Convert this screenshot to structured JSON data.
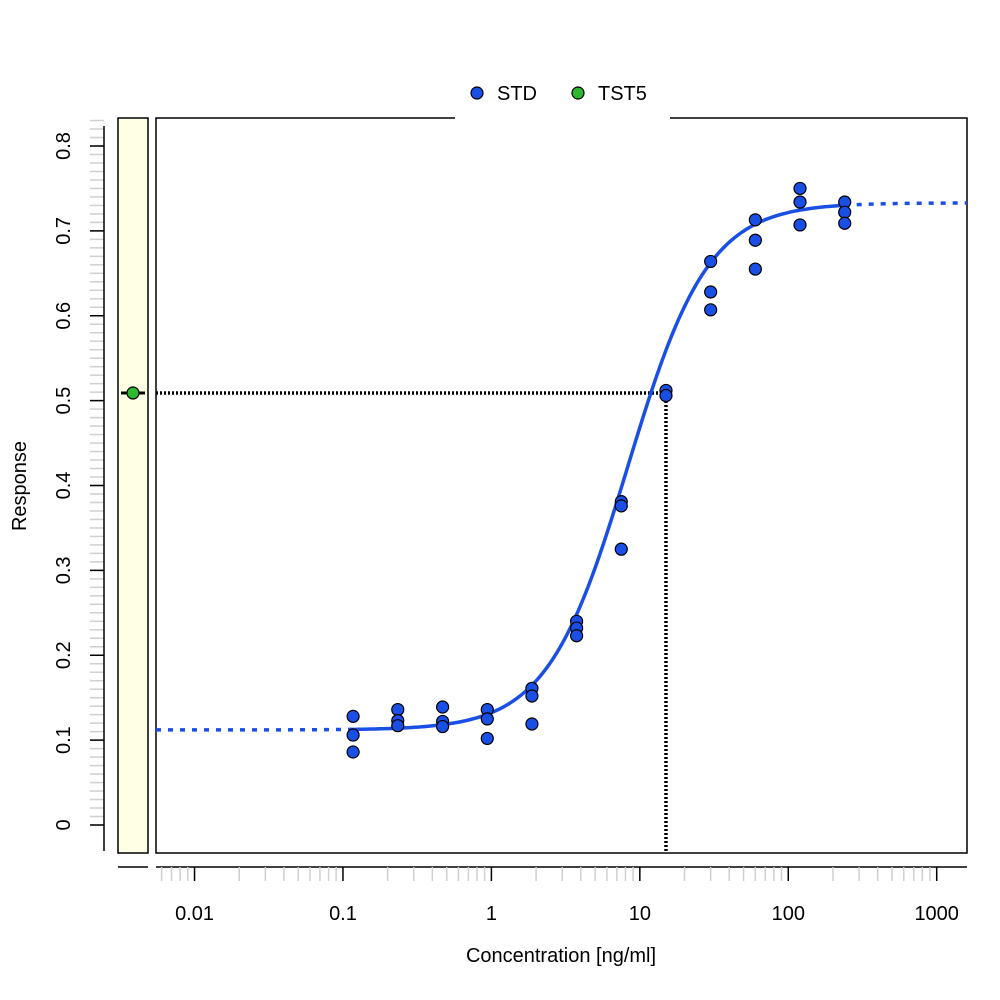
{
  "chart_data": {
    "type": "scatter",
    "title": "",
    "xlabel": "Concentration [ng/ml]",
    "ylabel": "Response",
    "x_scale": "log",
    "xlim": [
      0.0055,
      1600
    ],
    "ylim": [
      -0.033,
      0.833
    ],
    "x_ticks": [
      {
        "value": 0.01,
        "label": "0.01"
      },
      {
        "value": 0.1,
        "label": "0.1"
      },
      {
        "value": 1,
        "label": "1"
      },
      {
        "value": 10,
        "label": "10"
      },
      {
        "value": 100,
        "label": "100"
      },
      {
        "value": 1000,
        "label": "1000"
      }
    ],
    "y_ticks": [
      {
        "value": 0,
        "label": "0"
      },
      {
        "value": 0.1,
        "label": "0.1"
      },
      {
        "value": 0.2,
        "label": "0.2"
      },
      {
        "value": 0.3,
        "label": "0.3"
      },
      {
        "value": 0.4,
        "label": "0.4"
      },
      {
        "value": 0.5,
        "label": "0.5"
      },
      {
        "value": 0.6,
        "label": "0.6"
      },
      {
        "value": 0.7,
        "label": "0.7"
      },
      {
        "value": 0.8,
        "label": "0.8"
      }
    ],
    "legend": {
      "placement": "top-center",
      "entries": [
        {
          "label": "STD",
          "color": "#1a4fe6"
        },
        {
          "label": "TST5",
          "color": "#2db82d"
        }
      ]
    },
    "series": [
      {
        "name": "STD",
        "color": "#1a4fe6",
        "points": [
          {
            "x": 0.117,
            "y": 0.128
          },
          {
            "x": 0.117,
            "y": 0.106
          },
          {
            "x": 0.117,
            "y": 0.086
          },
          {
            "x": 0.234,
            "y": 0.136
          },
          {
            "x": 0.234,
            "y": 0.123
          },
          {
            "x": 0.234,
            "y": 0.117
          },
          {
            "x": 0.469,
            "y": 0.139
          },
          {
            "x": 0.469,
            "y": 0.122
          },
          {
            "x": 0.469,
            "y": 0.116
          },
          {
            "x": 0.938,
            "y": 0.136
          },
          {
            "x": 0.938,
            "y": 0.125
          },
          {
            "x": 0.938,
            "y": 0.102
          },
          {
            "x": 1.875,
            "y": 0.161
          },
          {
            "x": 1.875,
            "y": 0.152
          },
          {
            "x": 1.875,
            "y": 0.119
          },
          {
            "x": 3.75,
            "y": 0.24
          },
          {
            "x": 3.75,
            "y": 0.232
          },
          {
            "x": 3.75,
            "y": 0.223
          },
          {
            "x": 7.5,
            "y": 0.381
          },
          {
            "x": 7.5,
            "y": 0.376
          },
          {
            "x": 7.5,
            "y": 0.325
          },
          {
            "x": 15,
            "y": 0.512
          },
          {
            "x": 15,
            "y": 0.506
          },
          {
            "x": 30,
            "y": 0.664
          },
          {
            "x": 30,
            "y": 0.628
          },
          {
            "x": 30,
            "y": 0.607
          },
          {
            "x": 60,
            "y": 0.713
          },
          {
            "x": 60,
            "y": 0.689
          },
          {
            "x": 60,
            "y": 0.655
          },
          {
            "x": 120,
            "y": 0.75
          },
          {
            "x": 120,
            "y": 0.734
          },
          {
            "x": 120,
            "y": 0.707
          },
          {
            "x": 240,
            "y": 0.734
          },
          {
            "x": 240,
            "y": 0.722
          },
          {
            "x": 240,
            "y": 0.709
          }
        ]
      },
      {
        "name": "TST5",
        "color": "#2db82d",
        "points": [
          {
            "y": 0.509
          }
        ]
      }
    ],
    "fit_curve": {
      "model": "4PL",
      "bottom": 0.112,
      "top": 0.733,
      "ec50": 8.3,
      "hill": 1.6,
      "solid_range": [
        0.117,
        240
      ],
      "color": "#1a4fe6"
    },
    "interpolation": {
      "response": 0.509,
      "concentration": 15
    }
  }
}
